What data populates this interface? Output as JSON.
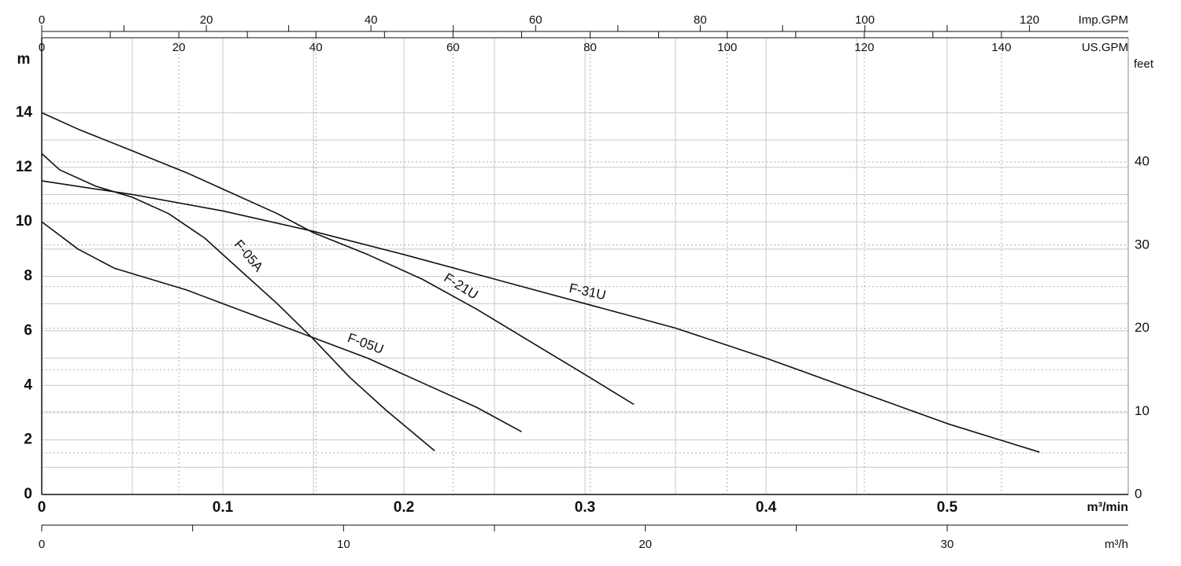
{
  "chart_data": {
    "type": "line",
    "x_label": "m³/min",
    "y_label": "m",
    "y2_label": "feet",
    "xlim": [
      0,
      0.6
    ],
    "xticks": [
      0,
      0.1,
      0.2,
      0.3,
      0.4,
      0.5
    ],
    "ylim": [
      0,
      16.75
    ],
    "yticks": [
      0,
      2,
      4,
      6,
      8,
      10,
      12,
      14
    ],
    "y2lim": [
      0,
      54.95
    ],
    "y2ticks": [
      0,
      10,
      20,
      30,
      40
    ],
    "grid": true,
    "top_axes": [
      {
        "label": "Imp.GPM",
        "xlim": [
          0,
          132
        ],
        "xticks": [
          0,
          20,
          40,
          60,
          80,
          100,
          120
        ]
      },
      {
        "label": "US.GPM",
        "xlim": [
          0,
          158.5
        ],
        "xticks": [
          0,
          20,
          40,
          60,
          80,
          100,
          120,
          140
        ]
      }
    ],
    "bottom_axis2": {
      "label": "m³/h",
      "xlim": [
        0,
        36
      ],
      "xticks": [
        0,
        10,
        20,
        30
      ]
    },
    "series": [
      {
        "name": "F-05A",
        "color": "#111111",
        "x": [
          0,
          0.01,
          0.03,
          0.05,
          0.07,
          0.09,
          0.11,
          0.13,
          0.15,
          0.17,
          0.19,
          0.217
        ],
        "values": [
          12.5,
          11.9,
          11.3,
          10.9,
          10.3,
          9.4,
          8.2,
          7.0,
          5.7,
          4.3,
          3.1,
          1.6
        ]
      },
      {
        "name": "F-05U",
        "color": "#111111",
        "x": [
          0,
          0.02,
          0.04,
          0.06,
          0.08,
          0.1,
          0.12,
          0.15,
          0.18,
          0.21,
          0.24,
          0.265
        ],
        "values": [
          10,
          9.0,
          8.3,
          7.9,
          7.5,
          7.0,
          6.5,
          5.75,
          5.0,
          4.1,
          3.2,
          2.3
        ]
      },
      {
        "name": "F-21U",
        "color": "#111111",
        "x": [
          0,
          0.02,
          0.05,
          0.08,
          0.1,
          0.13,
          0.15,
          0.18,
          0.21,
          0.24,
          0.27,
          0.3,
          0.327
        ],
        "values": [
          14,
          13.4,
          12.6,
          11.8,
          11.2,
          10.3,
          9.6,
          8.8,
          7.9,
          6.8,
          5.6,
          4.4,
          3.3
        ]
      },
      {
        "name": "F-31U",
        "color": "#111111",
        "x": [
          0,
          0.05,
          0.1,
          0.15,
          0.2,
          0.25,
          0.3,
          0.35,
          0.4,
          0.45,
          0.5,
          0.551
        ],
        "values": [
          11.5,
          11.0,
          10.4,
          9.65,
          8.8,
          7.9,
          7.0,
          6.1,
          5.0,
          3.8,
          2.6,
          1.55
        ]
      }
    ]
  }
}
